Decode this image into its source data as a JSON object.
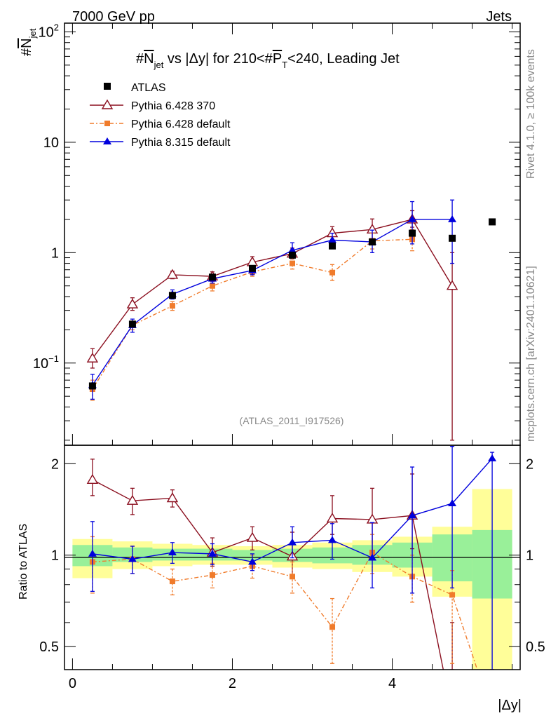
{
  "header": {
    "left": "7000 GeV pp",
    "right": "Jets",
    "title_prefix": "#",
    "title_obs": "N",
    "title_obs_sub": "jet",
    "title_mid": " vs |Δy| for 210<#",
    "title_var": "P",
    "title_var_sub": "T",
    "title_suffix": "<240, Leading Jet"
  },
  "side_labels": {
    "rivet": "Rivet 4.1.0, ≥ 100k events",
    "mcplots": "mcplots.cern.ch [arXiv:2401.10621]"
  },
  "watermark": "(ATLAS_2011_I917526)",
  "axes": {
    "ylabel_prefix": "#",
    "ylabel_obs": "N",
    "ylabel_sub": "jet",
    "ratio_ylabel": "Ratio to ATLAS",
    "xlabel": "|Δy|",
    "main_ticks": [
      {
        "v": 0.1,
        "base": "10",
        "exp": "−1"
      },
      {
        "v": 1,
        "base": "1",
        "exp": ""
      },
      {
        "v": 10,
        "base": "10",
        "exp": ""
      },
      {
        "v": 100,
        "base": "10",
        "exp": "2"
      }
    ],
    "ratio_ticks": [
      {
        "v": 0.5,
        "label": "0.5"
      },
      {
        "v": 1,
        "label": "1"
      },
      {
        "v": 2,
        "label": "2"
      }
    ],
    "x_ticks": [
      {
        "v": 0,
        "label": "0"
      },
      {
        "v": 2,
        "label": "2"
      },
      {
        "v": 4,
        "label": "4"
      }
    ]
  },
  "legend": {
    "atlas": "ATLAS",
    "py370": "Pythia 6.428 370",
    "pydef": "Pythia 6.428 default",
    "py8": "Pythia 8.315 default"
  },
  "colors": {
    "atlas": "#000000",
    "py370": "#8b0f1f",
    "pydef": "#f07b2b",
    "py8": "#0000dd",
    "band_green": "#99f099",
    "band_yellow": "#fffe99"
  },
  "chart_data": {
    "type": "scatter",
    "title": "#N_jet vs |Δy| for 210<#P_T<240, Leading Jet",
    "xlabel": "|Δy|",
    "ylabel": "#N_jet",
    "ratio_ylabel": "Ratio to ATLAS",
    "xlim": [
      -0.1,
      5.6
    ],
    "ylim_main": [
      0.018,
      120
    ],
    "ylim_ratio": [
      0.42,
      2.3
    ],
    "y_scale": "log",
    "x": [
      0.25,
      0.75,
      1.25,
      1.75,
      2.25,
      2.75,
      3.25,
      3.75,
      4.25,
      4.75,
      5.25
    ],
    "bin_edges": [
      0,
      0.5,
      1,
      1.5,
      2,
      2.5,
      3,
      3.5,
      4,
      4.5,
      5,
      5.5
    ],
    "series": [
      {
        "name": "ATLAS",
        "key": "atlas",
        "values": [
          0.062,
          0.225,
          0.41,
          0.6,
          0.72,
          0.95,
          1.15,
          1.25,
          1.5,
          1.35,
          1.9
        ]
      },
      {
        "name": "Pythia 6.428 370",
        "key": "py370",
        "values": [
          0.11,
          0.34,
          0.63,
          0.61,
          0.82,
          0.98,
          1.5,
          1.62,
          2.0,
          0.5
        ],
        "err_lo": [
          0.02,
          0.04,
          0.05,
          0.06,
          0.08,
          0.1,
          0.2,
          0.35,
          0.3,
          0.48
        ],
        "err_hi": [
          0.025,
          0.05,
          0.05,
          0.06,
          0.1,
          0.12,
          0.22,
          0.4,
          0.4,
          0.5
        ]
      },
      {
        "name": "Pythia 6.428 default",
        "key": "pydef",
        "values": [
          0.058,
          0.22,
          0.33,
          0.5,
          0.67,
          0.8,
          0.66,
          1.28,
          1.32
        ],
        "err_lo": [
          0.012,
          0.02,
          0.03,
          0.05,
          0.06,
          0.09,
          0.1,
          0.2,
          0.28
        ],
        "err_hi": [
          0.012,
          0.02,
          0.03,
          0.05,
          0.06,
          0.1,
          0.12,
          0.22,
          0.3
        ]
      },
      {
        "name": "Pythia 8.315 default",
        "key": "py8",
        "values": [
          0.063,
          0.22,
          0.42,
          0.58,
          0.69,
          1.05,
          1.3,
          1.25,
          2.0,
          2.0
        ],
        "err_lo": [
          0.016,
          0.03,
          0.04,
          0.05,
          0.06,
          0.15,
          0.18,
          0.25,
          0.8,
          1.2
        ],
        "err_hi": [
          0.016,
          0.03,
          0.04,
          0.05,
          0.06,
          0.18,
          0.2,
          0.35,
          0.9,
          1.0
        ]
      }
    ],
    "ratio": {
      "atlas_band_green": [
        [
          0.92,
          1.08
        ],
        [
          0.95,
          1.06
        ],
        [
          0.96,
          1.05
        ],
        [
          0.96,
          1.05
        ],
        [
          0.96,
          1.04
        ],
        [
          0.95,
          1.05
        ],
        [
          0.94,
          1.06
        ],
        [
          0.93,
          1.08
        ],
        [
          0.91,
          1.1
        ],
        [
          0.82,
          1.17
        ],
        [
          0.72,
          1.21
        ]
      ],
      "atlas_band_yellow": [
        [
          0.84,
          1.13
        ],
        [
          0.9,
          1.11
        ],
        [
          0.92,
          1.09
        ],
        [
          0.93,
          1.08
        ],
        [
          0.93,
          1.07
        ],
        [
          0.91,
          1.08
        ],
        [
          0.9,
          1.1
        ],
        [
          0.88,
          1.12
        ],
        [
          0.85,
          1.15
        ],
        [
          0.73,
          1.24
        ],
        [
          0.42,
          1.65
        ]
      ],
      "series": [
        {
          "key": "py370",
          "values": [
            1.77,
            1.51,
            1.54,
            1.02,
            1.14,
            0.99,
            1.32,
            1.31,
            1.35,
            0.3
          ],
          "err_lo": [
            0.2,
            0.15,
            0.1,
            0.1,
            0.1,
            0.15,
            0.15,
            0.3,
            0.3,
            0.3
          ],
          "err_hi": [
            0.3,
            0.15,
            0.1,
            0.12,
            0.1,
            0.2,
            0.25,
            0.35,
            0.5,
            0.3
          ]
        },
        {
          "key": "pydef",
          "values": [
            0.95,
            0.97,
            0.82,
            0.86,
            0.92,
            0.85,
            0.58,
            1.02,
            0.85,
            0.74,
            0.3
          ],
          "err_lo": [
            0.2,
            0.1,
            0.08,
            0.08,
            0.08,
            0.1,
            0.14,
            0.15,
            0.15,
            0.3,
            0.1
          ],
          "err_hi": [
            0.2,
            0.1,
            0.08,
            0.08,
            0.08,
            0.1,
            0.14,
            0.15,
            0.15,
            0.15,
            0.1
          ]
        },
        {
          "key": "py8",
          "values": [
            1.01,
            0.97,
            1.02,
            1.01,
            0.95,
            1.1,
            1.12,
            0.98,
            1.35,
            1.48,
            2.08
          ],
          "err_lo": [
            0.25,
            0.1,
            0.08,
            0.08,
            0.06,
            0.12,
            0.15,
            0.2,
            0.6,
            0.7,
            1.7
          ],
          "err_hi": [
            0.28,
            0.1,
            0.08,
            0.08,
            0.06,
            0.14,
            0.15,
            0.3,
            0.6,
            0.8,
            0.1
          ]
        }
      ]
    }
  }
}
